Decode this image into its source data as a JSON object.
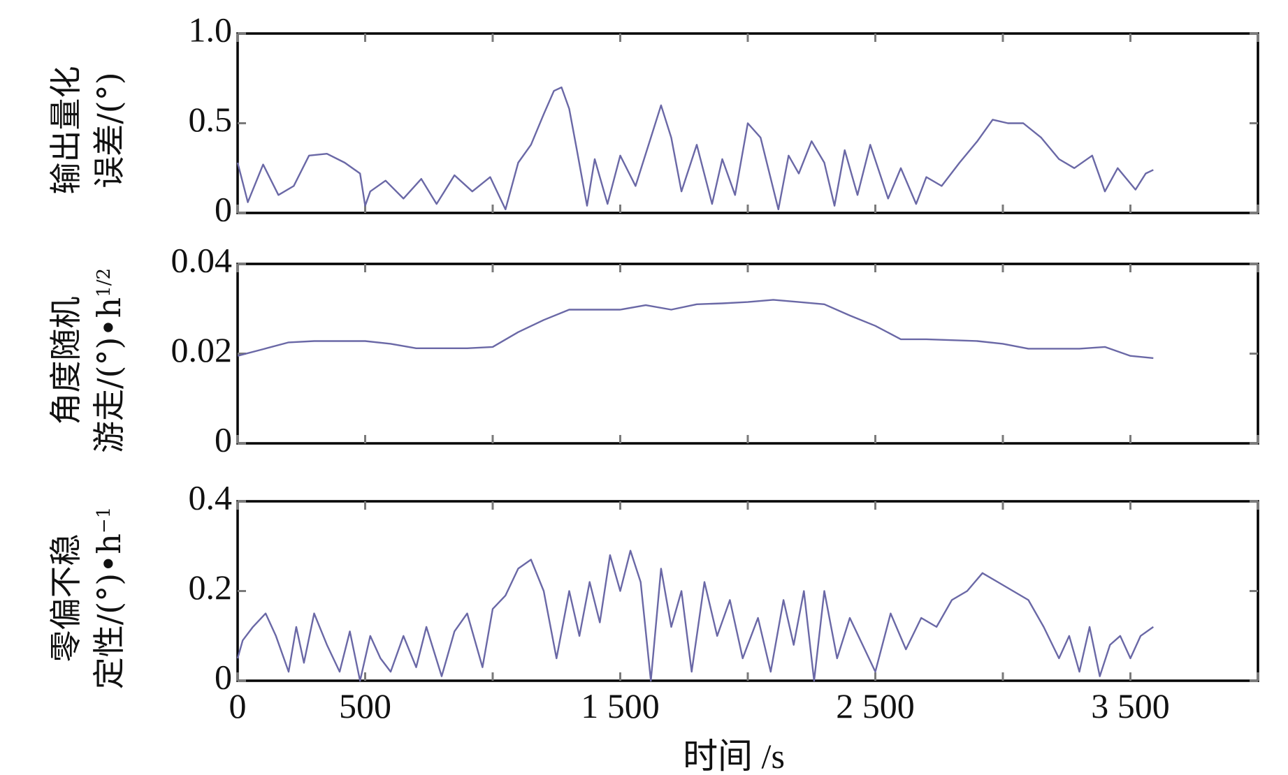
{
  "chart_data": [
    {
      "type": "line",
      "ylabel_lines": [
        "输出量化",
        "误差/(°)"
      ],
      "ylim": [
        0,
        1.0
      ],
      "yticks": [
        0,
        0.5,
        1.0
      ],
      "ytick_labels": [
        "0",
        "0.5",
        "1.0"
      ],
      "xlim": [
        0,
        4000
      ],
      "series": [
        {
          "name": "输出量化误差",
          "color": "#6a68a6",
          "x": [
            0,
            40,
            100,
            160,
            220,
            280,
            350,
            420,
            480,
            500,
            520,
            580,
            650,
            720,
            780,
            850,
            920,
            990,
            1050,
            1100,
            1150,
            1200,
            1240,
            1270,
            1300,
            1330,
            1370,
            1400,
            1450,
            1500,
            1560,
            1620,
            1660,
            1700,
            1740,
            1800,
            1860,
            1900,
            1950,
            2000,
            2050,
            2120,
            2160,
            2200,
            2250,
            2300,
            2340,
            2380,
            2430,
            2480,
            2550,
            2600,
            2660,
            2700,
            2760,
            2830,
            2900,
            2960,
            3020,
            3080,
            3150,
            3220,
            3280,
            3350,
            3400,
            3450,
            3520,
            3560,
            3590
          ],
          "y": [
            0.28,
            0.06,
            0.27,
            0.1,
            0.15,
            0.32,
            0.33,
            0.28,
            0.22,
            0.04,
            0.12,
            0.18,
            0.08,
            0.19,
            0.05,
            0.21,
            0.12,
            0.2,
            0.02,
            0.28,
            0.38,
            0.55,
            0.68,
            0.7,
            0.58,
            0.35,
            0.04,
            0.3,
            0.05,
            0.32,
            0.15,
            0.42,
            0.6,
            0.42,
            0.12,
            0.38,
            0.05,
            0.3,
            0.1,
            0.5,
            0.42,
            0.02,
            0.32,
            0.22,
            0.4,
            0.28,
            0.04,
            0.35,
            0.1,
            0.38,
            0.08,
            0.25,
            0.05,
            0.2,
            0.15,
            0.28,
            0.4,
            0.52,
            0.5,
            0.5,
            0.42,
            0.3,
            0.25,
            0.32,
            0.12,
            0.25,
            0.13,
            0.22,
            0.24
          ]
        }
      ]
    },
    {
      "type": "line",
      "ylabel_lines": [
        "角度随机",
        "游走/(°)•h"
      ],
      "ylabel_exponent": "1/2",
      "ylim": [
        0,
        0.04
      ],
      "yticks": [
        0,
        0.02,
        0.04
      ],
      "ytick_labels": [
        "0",
        "0.02",
        "0.04"
      ],
      "xlim": [
        0,
        4000
      ],
      "series": [
        {
          "name": "角度随机游走",
          "color": "#6a68a6",
          "x": [
            0,
            100,
            200,
            300,
            400,
            500,
            600,
            700,
            800,
            900,
            1000,
            1100,
            1200,
            1300,
            1400,
            1500,
            1600,
            1700,
            1800,
            1900,
            2000,
            2100,
            2200,
            2300,
            2400,
            2500,
            2600,
            2700,
            2800,
            2900,
            3000,
            3100,
            3200,
            3300,
            3400,
            3500,
            3590
          ],
          "y": [
            0.0195,
            0.021,
            0.0225,
            0.0228,
            0.0228,
            0.0228,
            0.0222,
            0.0212,
            0.0212,
            0.0212,
            0.0215,
            0.0248,
            0.0275,
            0.0298,
            0.0298,
            0.0298,
            0.0308,
            0.0298,
            0.031,
            0.0312,
            0.0315,
            0.032,
            0.0315,
            0.031,
            0.0285,
            0.0262,
            0.0232,
            0.0232,
            0.023,
            0.0228,
            0.0222,
            0.0211,
            0.0211,
            0.0211,
            0.0215,
            0.0195,
            0.019
          ]
        }
      ]
    },
    {
      "type": "line",
      "ylabel_lines": [
        "零偏不稳",
        "定性/(°)•h"
      ],
      "ylabel_exponent": "−1",
      "ylim": [
        0,
        0.4
      ],
      "yticks": [
        0,
        0.2,
        0.4
      ],
      "ytick_labels": [
        "0",
        "0.2",
        "0.4"
      ],
      "xlim": [
        0,
        4000
      ],
      "xticks": [
        0,
        500,
        1500,
        2500,
        3500
      ],
      "xtick_labels": [
        "0",
        "500",
        "1 500",
        "2 500",
        "3 500"
      ],
      "xlabel": "时间 /s",
      "series": [
        {
          "name": "零偏不稳定性",
          "color": "#6a68a6",
          "x": [
            0,
            20,
            60,
            110,
            150,
            200,
            230,
            260,
            300,
            350,
            400,
            440,
            480,
            520,
            560,
            600,
            650,
            700,
            740,
            800,
            850,
            900,
            960,
            1000,
            1050,
            1100,
            1150,
            1200,
            1250,
            1300,
            1340,
            1380,
            1420,
            1460,
            1500,
            1540,
            1580,
            1620,
            1660,
            1700,
            1740,
            1780,
            1830,
            1880,
            1930,
            1980,
            2040,
            2090,
            2140,
            2180,
            2220,
            2260,
            2300,
            2350,
            2400,
            2450,
            2500,
            2560,
            2620,
            2680,
            2740,
            2800,
            2860,
            2920,
            2980,
            3040,
            3100,
            3160,
            3220,
            3260,
            3300,
            3340,
            3380,
            3420,
            3460,
            3500,
            3540,
            3590
          ],
          "y": [
            0.05,
            0.09,
            0.12,
            0.15,
            0.1,
            0.02,
            0.12,
            0.04,
            0.15,
            0.08,
            0.02,
            0.11,
            0.0,
            0.1,
            0.05,
            0.02,
            0.1,
            0.03,
            0.12,
            0.01,
            0.11,
            0.15,
            0.03,
            0.16,
            0.19,
            0.25,
            0.27,
            0.2,
            0.05,
            0.2,
            0.1,
            0.22,
            0.13,
            0.28,
            0.2,
            0.29,
            0.22,
            0.0,
            0.25,
            0.12,
            0.2,
            0.02,
            0.22,
            0.1,
            0.18,
            0.05,
            0.14,
            0.02,
            0.18,
            0.08,
            0.2,
            0.0,
            0.2,
            0.05,
            0.14,
            0.08,
            0.02,
            0.15,
            0.07,
            0.14,
            0.12,
            0.18,
            0.2,
            0.24,
            0.22,
            0.2,
            0.18,
            0.12,
            0.05,
            0.1,
            0.02,
            0.12,
            0.01,
            0.08,
            0.1,
            0.05,
            0.1,
            0.12
          ]
        }
      ]
    }
  ]
}
